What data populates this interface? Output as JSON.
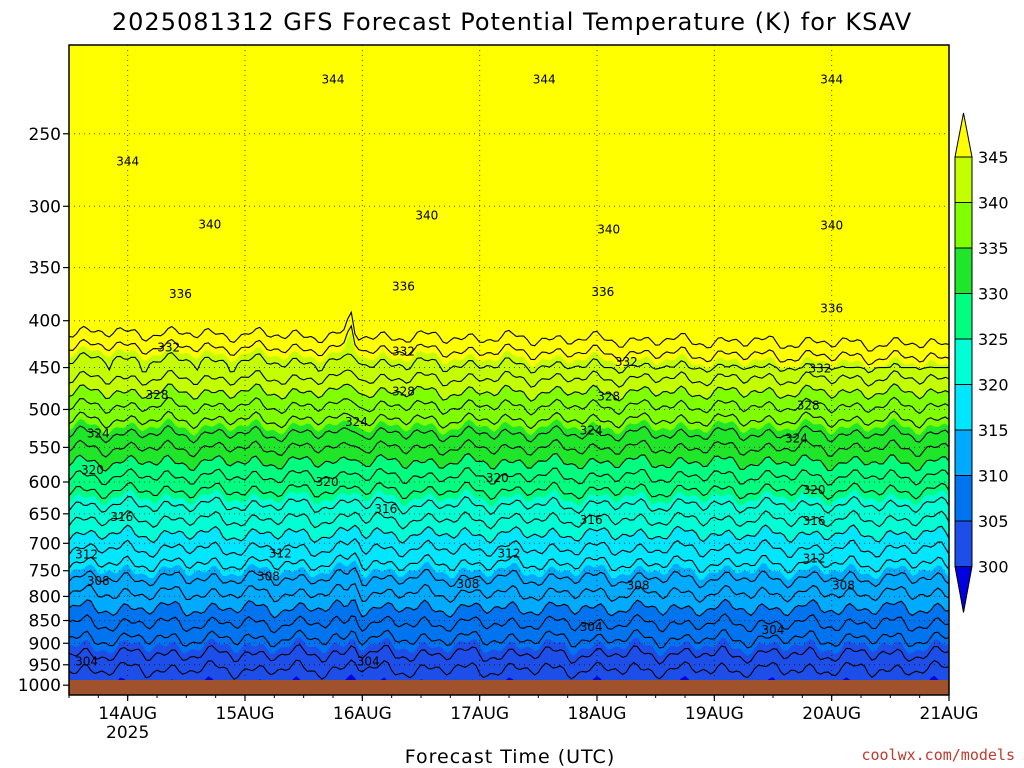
{
  "title": "2025081312 GFS Forecast Potential Temperature (K) for KSAV",
  "credit": "coolwx.com/models",
  "chart_data": {
    "type": "heatmap",
    "title": "2025081312 GFS Forecast Potential Temperature (K) for KSAV",
    "xlabel": "Forecast Time (UTC)",
    "ylabel": "",
    "x_ticks": [
      {
        "label": "14AUG",
        "sublabel": "2025",
        "day": 1
      },
      {
        "label": "15AUG",
        "sublabel": "",
        "day": 2
      },
      {
        "label": "16AUG",
        "sublabel": "",
        "day": 3
      },
      {
        "label": "17AUG",
        "sublabel": "",
        "day": 4
      },
      {
        "label": "18AUG",
        "sublabel": "",
        "day": 5
      },
      {
        "label": "19AUG",
        "sublabel": "",
        "day": 6
      },
      {
        "label": "20AUG",
        "sublabel": "",
        "day": 7
      },
      {
        "label": "21AUG",
        "sublabel": "",
        "day": 8
      }
    ],
    "xlim_days": [
      0.5,
      8.0
    ],
    "y_ticks": [
      250,
      300,
      350,
      400,
      450,
      500,
      550,
      600,
      650,
      700,
      750,
      800,
      850,
      900,
      950,
      1000
    ],
    "ylim_hpa": [
      1025,
      200
    ],
    "y_scale": "log",
    "grid": true,
    "colorbar": {
      "labels": [
        "345",
        "340",
        "335",
        "330",
        "325",
        "320",
        "315",
        "310",
        "305",
        "300"
      ],
      "bins": [
        {
          "min": 345,
          "max": 999,
          "color": "#ffff00"
        },
        {
          "min": 340,
          "max": 345,
          "color": "#c3ff00"
        },
        {
          "min": 335,
          "max": 340,
          "color": "#7fff00"
        },
        {
          "min": 330,
          "max": 335,
          "color": "#20e62a"
        },
        {
          "min": 325,
          "max": 330,
          "color": "#00ff7f"
        },
        {
          "min": 320,
          "max": 325,
          "color": "#00ffd5"
        },
        {
          "min": 315,
          "max": 320,
          "color": "#00e6ff"
        },
        {
          "min": 310,
          "max": 315,
          "color": "#00aaff"
        },
        {
          "min": 305,
          "max": 310,
          "color": "#0074ee"
        },
        {
          "min": 300,
          "max": 305,
          "color": "#1e4ee8"
        },
        {
          "min": 0,
          "max": 300,
          "color": "#0000e0"
        }
      ],
      "extend": "both"
    },
    "contour_interval_k": 2,
    "contour_labels": [
      {
        "value": "344",
        "day": 2.75,
        "p": 218
      },
      {
        "value": "344",
        "day": 4.55,
        "p": 218
      },
      {
        "value": "344",
        "day": 7.0,
        "p": 218
      },
      {
        "value": "344",
        "day": 1.0,
        "p": 268
      },
      {
        "value": "340",
        "day": 1.7,
        "p": 314
      },
      {
        "value": "340",
        "day": 3.55,
        "p": 307
      },
      {
        "value": "340",
        "day": 5.1,
        "p": 318
      },
      {
        "value": "340",
        "day": 7.0,
        "p": 315
      },
      {
        "value": "336",
        "day": 1.45,
        "p": 374
      },
      {
        "value": "336",
        "day": 3.35,
        "p": 367
      },
      {
        "value": "336",
        "day": 5.05,
        "p": 372
      },
      {
        "value": "336",
        "day": 7.0,
        "p": 388
      },
      {
        "value": "332",
        "day": 1.35,
        "p": 428
      },
      {
        "value": "332",
        "day": 3.35,
        "p": 432
      },
      {
        "value": "332",
        "day": 5.25,
        "p": 444
      },
      {
        "value": "332",
        "day": 6.9,
        "p": 451
      },
      {
        "value": "328",
        "day": 1.25,
        "p": 482
      },
      {
        "value": "328",
        "day": 3.35,
        "p": 478
      },
      {
        "value": "328",
        "day": 5.1,
        "p": 484
      },
      {
        "value": "328",
        "day": 6.8,
        "p": 495
      },
      {
        "value": "324",
        "day": 0.75,
        "p": 531
      },
      {
        "value": "324",
        "day": 2.95,
        "p": 516
      },
      {
        "value": "324",
        "day": 4.95,
        "p": 527
      },
      {
        "value": "324",
        "day": 6.7,
        "p": 538
      },
      {
        "value": "320",
        "day": 0.7,
        "p": 582
      },
      {
        "value": "320",
        "day": 2.7,
        "p": 600
      },
      {
        "value": "320",
        "day": 4.15,
        "p": 594
      },
      {
        "value": "320",
        "day": 6.85,
        "p": 612
      },
      {
        "value": "316",
        "day": 0.95,
        "p": 655
      },
      {
        "value": "316",
        "day": 3.2,
        "p": 642
      },
      {
        "value": "316",
        "day": 4.95,
        "p": 660
      },
      {
        "value": "316",
        "day": 6.85,
        "p": 662
      },
      {
        "value": "312",
        "day": 0.65,
        "p": 720
      },
      {
        "value": "312",
        "day": 2.3,
        "p": 718
      },
      {
        "value": "312",
        "day": 4.25,
        "p": 718
      },
      {
        "value": "312",
        "day": 6.85,
        "p": 727
      },
      {
        "value": "308",
        "day": 0.75,
        "p": 770
      },
      {
        "value": "308",
        "day": 2.2,
        "p": 761
      },
      {
        "value": "308",
        "day": 3.9,
        "p": 775
      },
      {
        "value": "308",
        "day": 5.35,
        "p": 778
      },
      {
        "value": "308",
        "day": 7.1,
        "p": 778
      },
      {
        "value": "304",
        "day": 0.65,
        "p": 942
      },
      {
        "value": "304",
        "day": 3.05,
        "p": 942
      },
      {
        "value": "304",
        "day": 4.95,
        "p": 864
      },
      {
        "value": "304",
        "day": 6.5,
        "p": 870
      }
    ]
  }
}
